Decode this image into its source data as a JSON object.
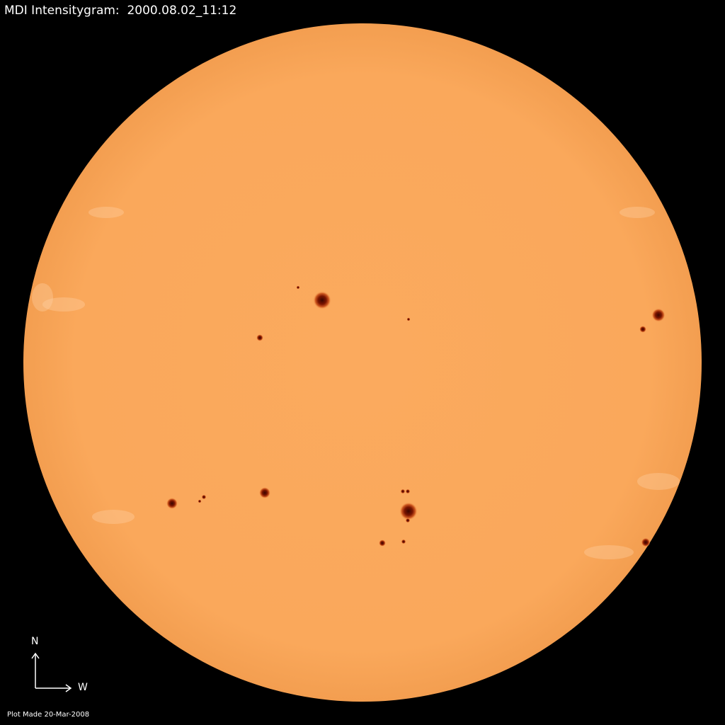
{
  "title": "MDI Intensitygram:  2000.08.02_11:12",
  "compass": {
    "north_label": "N",
    "west_label": "W"
  },
  "footer": "Plot Made 20-Mar-2008",
  "colors": {
    "background": "#000000",
    "solar_disk": "#FBAA5E",
    "limb": "#F59E50",
    "sunspot_umbra": "#5a0a00",
    "sunspot_penumbra": "#c8501a",
    "faculae": "#FFD4A8"
  }
}
